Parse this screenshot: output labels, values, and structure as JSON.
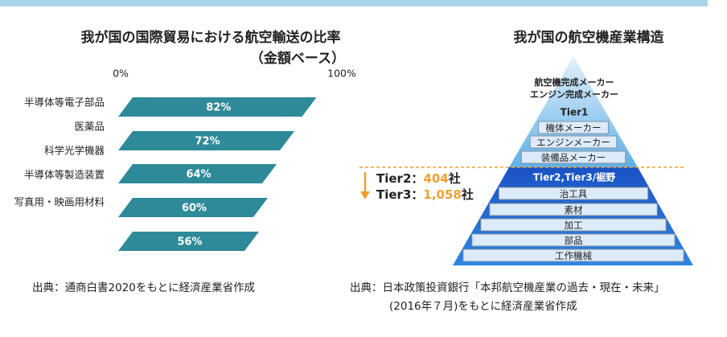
{
  "chart_data": {
    "type": "bar",
    "title": "我が国の国際貿易における航空輸送の比率",
    "subtitle": "（金額ベース）",
    "categories": [
      "半導体等電子部品",
      "医薬品",
      "科学光学機器",
      "半導体等製造装置",
      "写真用・映画用材料"
    ],
    "values": [
      82,
      72,
      64,
      60,
      56
    ],
    "value_labels": [
      "82%",
      "72%",
      "64%",
      "60%",
      "56%"
    ],
    "color": "#2e8a99",
    "xlim": [
      0,
      100
    ],
    "xticks": [
      {
        "value": 0,
        "label": "0%"
      },
      {
        "value": 100,
        "label": "100%"
      }
    ]
  },
  "pyramid": {
    "title": "我が国の航空機産業構造",
    "apex": [
      "航空機完成メーカー",
      "エンジン完成メーカー"
    ],
    "tier1": {
      "header": "Tier1",
      "items": [
        "機体メーカー",
        "エンジンメーカー",
        "装備品メーカー"
      ]
    },
    "tier23": {
      "header": "Tier2,Tier3/裾野",
      "items": [
        "治工具",
        "素材",
        "加工",
        "部品",
        "工作機械"
      ]
    },
    "counts": [
      {
        "label": "Tier2：",
        "number": "404",
        "unit": "社"
      },
      {
        "label": "Tier3：",
        "number": "1,058",
        "unit": "社"
      }
    ]
  },
  "sources": {
    "left": "出典：通商白書2020をもとに経済産業省作成",
    "right": [
      "出典：日本政策投資銀行「本邦航空機産業の過去・現在・未来」",
      "(2016年７月)をもとに経済産業省作成"
    ]
  }
}
